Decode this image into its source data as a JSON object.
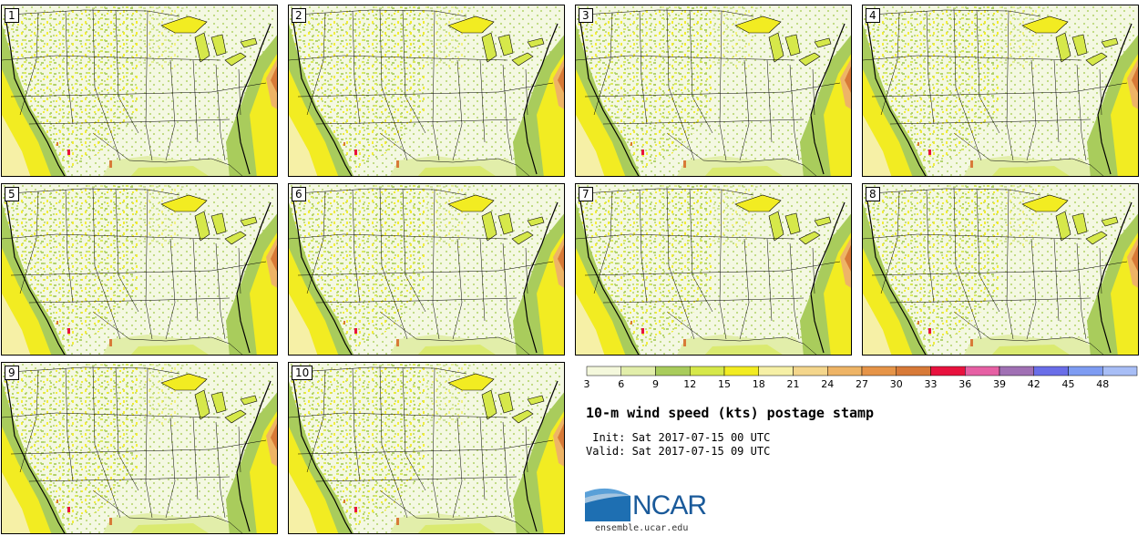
{
  "panels": [
    {
      "label": "1"
    },
    {
      "label": "2"
    },
    {
      "label": "3"
    },
    {
      "label": "4"
    },
    {
      "label": "5"
    },
    {
      "label": "6"
    },
    {
      "label": "7"
    },
    {
      "label": "8"
    },
    {
      "label": "9"
    },
    {
      "label": "10"
    }
  ],
  "colorbar": {
    "ticks": [
      "3",
      "6",
      "9",
      "12",
      "15",
      "18",
      "21",
      "24",
      "27",
      "30",
      "33",
      "36",
      "39",
      "42",
      "45",
      "48"
    ],
    "colors": [
      "#f4f8dc",
      "#e2eeaa",
      "#a9cc5c",
      "#d6e84a",
      "#f2ec22",
      "#f6f0a6",
      "#f4d68c",
      "#eeb466",
      "#e69448",
      "#d87a38",
      "#e8123e",
      "#e660a4",
      "#a070b4",
      "#6a6ee8",
      "#7e9cf2",
      "#a8bef6"
    ]
  },
  "title": "10-m wind speed (kts) postage stamp",
  "init": " Init: Sat 2017-07-15 00 UTC",
  "valid": "Valid: Sat 2017-07-15 09 UTC",
  "logo": {
    "text": "NCAR",
    "url_text": "ensemble.ucar.edu"
  }
}
